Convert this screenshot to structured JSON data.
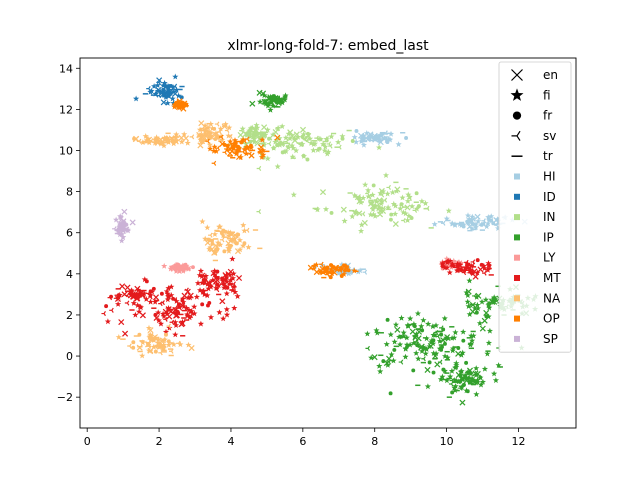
{
  "chart_data": {
    "type": "scatter",
    "title": "xlmr-long-fold-7: embed_last",
    "xlabel": "",
    "ylabel": "",
    "xlim": [
      -0.2,
      13.6
    ],
    "ylim": [
      -3.5,
      14.5
    ],
    "xticks": [
      0,
      2,
      4,
      6,
      8,
      10,
      12
    ],
    "yticks": [
      -2,
      0,
      2,
      4,
      6,
      8,
      10,
      12,
      14
    ],
    "grid": false,
    "legend_position": "upper right",
    "marker_legend": [
      {
        "label": "en",
        "marker": "x"
      },
      {
        "label": "fi",
        "marker": "star"
      },
      {
        "label": "fr",
        "marker": "dot"
      },
      {
        "label": "sv",
        "marker": "tri_left"
      },
      {
        "label": "tr",
        "marker": "hline"
      }
    ],
    "series": [
      {
        "name": "HI",
        "color": "#a6cee3",
        "clusters": [
          [
            10.8,
            6.5,
            1.0,
            0.3
          ],
          [
            8.0,
            10.6,
            0.6,
            0.25
          ],
          [
            7.1,
            4.2,
            0.4,
            0.2
          ]
        ]
      },
      {
        "name": "ID",
        "color": "#1f78b4",
        "clusters": [
          [
            2.2,
            12.9,
            0.45,
            0.45
          ]
        ]
      },
      {
        "name": "IN",
        "color": "#b2df8a",
        "clusters": [
          [
            5.6,
            10.3,
            1.4,
            0.75
          ],
          [
            8.1,
            7.4,
            1.5,
            0.8
          ],
          [
            4.6,
            10.8,
            0.5,
            0.4
          ]
        ]
      },
      {
        "name": "IP",
        "color": "#33a02c",
        "clusters": [
          [
            9.5,
            0.6,
            1.7,
            1.3
          ],
          [
            10.5,
            -1.2,
            0.7,
            0.6
          ],
          [
            11.4,
            2.6,
            0.9,
            0.55
          ],
          [
            5.2,
            12.4,
            0.35,
            0.3
          ]
        ]
      },
      {
        "name": "LY",
        "color": "#fb9a99",
        "clusters": [
          [
            2.6,
            4.3,
            0.25,
            0.15
          ],
          [
            10.1,
            4.5,
            0.3,
            0.15
          ]
        ]
      },
      {
        "name": "MT",
        "color": "#e31a1c",
        "clusters": [
          [
            2.5,
            2.4,
            1.4,
            1.0
          ],
          [
            3.6,
            3.6,
            0.6,
            0.6
          ],
          [
            10.6,
            4.3,
            0.7,
            0.3
          ],
          [
            1.3,
            3.0,
            0.4,
            0.25
          ]
        ]
      },
      {
        "name": "NA",
        "color": "#fdbf6f",
        "clusters": [
          [
            2.2,
            10.5,
            0.9,
            0.3
          ],
          [
            3.5,
            10.8,
            0.4,
            0.5
          ],
          [
            1.9,
            0.6,
            0.7,
            0.55
          ],
          [
            3.9,
            5.6,
            0.6,
            0.8
          ]
        ]
      },
      {
        "name": "OP",
        "color": "#ff7f00",
        "clusters": [
          [
            4.2,
            10.1,
            0.8,
            0.55
          ],
          [
            6.8,
            4.2,
            0.5,
            0.25
          ],
          [
            2.6,
            12.2,
            0.15,
            0.15
          ]
        ]
      },
      {
        "name": "SP",
        "color": "#cab2d6",
        "clusters": [
          [
            0.95,
            6.3,
            0.15,
            0.45
          ]
        ]
      }
    ]
  }
}
